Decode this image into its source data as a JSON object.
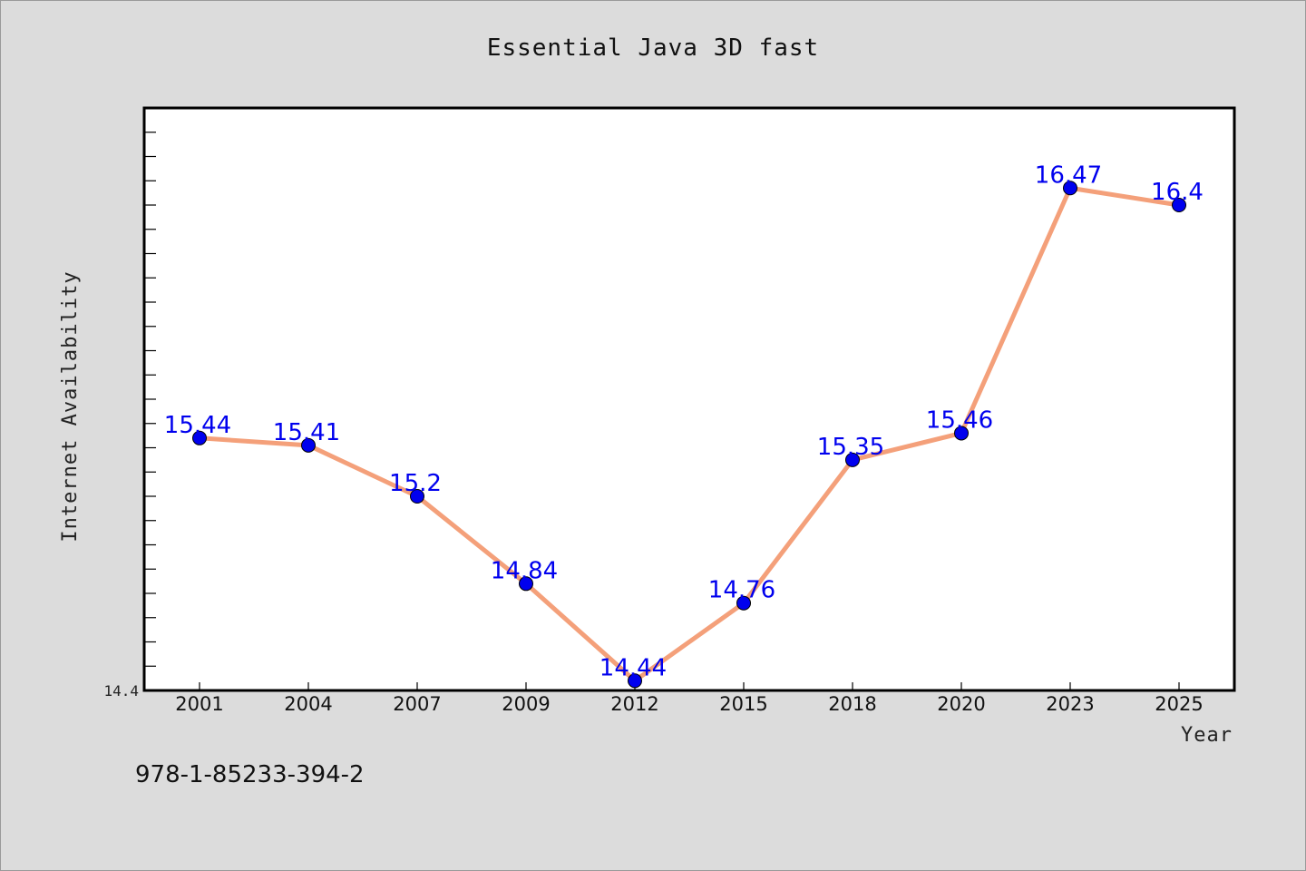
{
  "chart_data": {
    "type": "line",
    "title": "Essential Java 3D fast",
    "xlabel": "Year",
    "ylabel": "Internet Availability",
    "categories": [
      "2001",
      "2004",
      "2007",
      "2009",
      "2012",
      "2015",
      "2018",
      "2020",
      "2023",
      "2025"
    ],
    "series": [
      {
        "values": [
          15.44,
          15.41,
          15.2,
          14.84,
          14.44,
          14.76,
          15.35,
          15.46,
          16.47,
          16.4
        ],
        "data_labels": [
          "15.44",
          "15.41",
          "15.2",
          "14.84",
          "14.44",
          "14.76",
          "15.35",
          "15.46",
          "16.47",
          "16.4"
        ]
      }
    ],
    "ylim": [
      14.4,
      16.8
    ],
    "yticks_labeled": [
      "14.4"
    ],
    "grid": false,
    "legend": "none",
    "colors": {
      "line": "#f4a07a",
      "marker": "#0000ee",
      "data_label": "#0000ee",
      "plot_background": "#ffffff",
      "figure_background": "#dcdcdc"
    }
  },
  "footer": {
    "isbn": "978-1-85233-394-2"
  }
}
